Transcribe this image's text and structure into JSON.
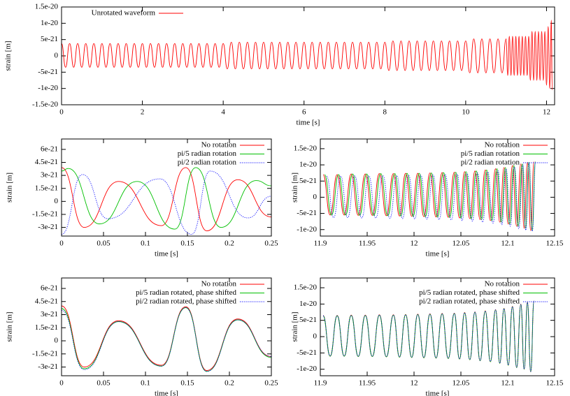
{
  "chart_data": [
    {
      "type": "line",
      "xlabel": "time [s]",
      "ylabel": "strain [m]",
      "xlim": [
        0,
        12.2
      ],
      "ylim": [
        -1.5e-20,
        1.5e-20
      ],
      "xticks": [
        0,
        2,
        4,
        6,
        8,
        10,
        12
      ],
      "yticks": [
        -1.5e-20,
        -1e-20,
        -5e-21,
        0,
        5e-21,
        1e-20,
        1.5e-20
      ],
      "legend": "upper left",
      "x": [
        0,
        0.1,
        0.2,
        0.3,
        0.4,
        0.5,
        0.6,
        0.7,
        0.8,
        0.9,
        1,
        1.1,
        1.2,
        1.3,
        1.4,
        1.5,
        1.6,
        1.7,
        1.8,
        1.9,
        2,
        2.1,
        2.2,
        2.3,
        2.4,
        2.5,
        2.6,
        2.7,
        2.8,
        2.9,
        3,
        3.1,
        3.2,
        3.3,
        3.4,
        3.5,
        3.6,
        3.7,
        3.8,
        3.9,
        4,
        4.1,
        4.2,
        4.3,
        4.4,
        4.5,
        4.6,
        4.7,
        4.8,
        4.9,
        5,
        5.1,
        5.2,
        5.3,
        5.4,
        5.5,
        5.6,
        5.7,
        5.8,
        5.9,
        6,
        6.1,
        6.2,
        6.3,
        6.4,
        6.5,
        6.6,
        6.7,
        6.8,
        6.9,
        7,
        7.1,
        7.2,
        7.3,
        7.4,
        7.5,
        7.6,
        7.7,
        7.8,
        7.9,
        8,
        8.1,
        8.2,
        8.3,
        8.4,
        8.5,
        8.6,
        8.7,
        8.8,
        8.9,
        9,
        9.1,
        9.2,
        9.3,
        9.4,
        9.5,
        9.6,
        9.7,
        9.8,
        9.9,
        10,
        10.1,
        10.2,
        10.3,
        10.4,
        10.5,
        10.6,
        10.7,
        10.8,
        10.9,
        11,
        11.04,
        11.08,
        11.12,
        11.16,
        11.2,
        11.24,
        11.28,
        11.32,
        11.36,
        11.4,
        11.44,
        11.48,
        11.52,
        11.56,
        11.6,
        11.64,
        11.68,
        11.72,
        11.76,
        11.8,
        11.84,
        11.88,
        11.92,
        11.96,
        12,
        12.04,
        12.08,
        12.12,
        12.14
      ],
      "series": [
        {
          "name": "Unrotated waveform",
          "color": "#ff0000",
          "values": [
            3.8e-21,
            -3.5e-21,
            3.8e-21,
            -3.5e-21,
            3.8e-21,
            -3.5e-21,
            3.8e-21,
            -3.5e-21,
            3.8e-21,
            -3.5e-21,
            3.8e-21,
            -3.5e-21,
            3.8e-21,
            -3.5e-21,
            3.8e-21,
            -3.5e-21,
            3.8e-21,
            -3.5e-21,
            3.8e-21,
            -3.5e-21,
            3.8e-21,
            -3.5e-21,
            3.8e-21,
            -3.5e-21,
            3.8e-21,
            -3.5e-21,
            3.8e-21,
            -3.5e-21,
            3.8e-21,
            -3.5e-21,
            3.8e-21,
            -3.5e-21,
            3.8e-21,
            -3.5e-21,
            3.8e-21,
            -3.5e-21,
            3.8e-21,
            -3.5e-21,
            3.8e-21,
            -3.5e-21,
            3.8e-21,
            -4e-21,
            4.2e-21,
            -4e-21,
            4.2e-21,
            -4e-21,
            4.2e-21,
            -4e-21,
            4.2e-21,
            -4e-21,
            4.2e-21,
            -4e-21,
            4.2e-21,
            -4e-21,
            4.2e-21,
            -4e-21,
            4.2e-21,
            -4e-21,
            4.2e-21,
            -4e-21,
            4.2e-21,
            -4e-21,
            4.2e-21,
            -4e-21,
            4.2e-21,
            -4e-21,
            4.2e-21,
            -4e-21,
            4.2e-21,
            -4e-21,
            4.2e-21,
            -4e-21,
            4.2e-21,
            -4e-21,
            4.2e-21,
            -4e-21,
            4.2e-21,
            -4e-21,
            4.2e-21,
            -4e-21,
            4.2e-21,
            -4.5e-21,
            4.6e-21,
            -4.5e-21,
            4.6e-21,
            -4.5e-21,
            4.6e-21,
            -4.5e-21,
            4.6e-21,
            -4.5e-21,
            4.6e-21,
            -4.5e-21,
            4.6e-21,
            -4.5e-21,
            4.6e-21,
            -4.5e-21,
            4.6e-21,
            -4.5e-21,
            4.6e-21,
            -4.5e-21,
            4.6e-21,
            -5.2e-21,
            5.2e-21,
            -5.2e-21,
            5.2e-21,
            -5.2e-21,
            5.2e-21,
            -5.2e-21,
            5.2e-21,
            -5.2e-21,
            5.2e-21,
            -6e-21,
            6e-21,
            -6e-21,
            6e-21,
            -6e-21,
            6e-21,
            -6e-21,
            6e-21,
            -6e-21,
            6e-21,
            -6e-21,
            6e-21,
            -6e-21,
            6e-21,
            -7.5e-21,
            7.5e-21,
            -7.5e-21,
            7.5e-21,
            -7.5e-21,
            7.5e-21,
            -7.5e-21,
            7.5e-21,
            -7.5e-21,
            7.5e-21,
            -9e-21,
            9e-21,
            -1e-20,
            1.1e-20,
            -1.05e-20
          ]
        }
      ]
    },
    {
      "type": "line",
      "xlabel": "time [s]",
      "ylabel": "strain [m]",
      "xlim": [
        0,
        0.25
      ],
      "ylim": [
        -4e-21,
        7.2e-21
      ],
      "xticks": [
        0,
        0.05,
        0.1,
        0.15,
        0.2,
        0.25
      ],
      "yticks": [
        -3e-21,
        -1.5e-21,
        0,
        1.5e-21,
        3e-21,
        4.5e-21,
        6e-21
      ],
      "legend": "upper right",
      "series": [
        {
          "name": "No rotation",
          "color": "#ff0000",
          "x": [
            0,
            0.027,
            0.068,
            0.119,
            0.148,
            0.173,
            0.21,
            0.25
          ],
          "values": [
            3.9e-21,
            -3e-21,
            2.3e-21,
            -2.8e-21,
            3.9e-21,
            -3.4e-21,
            2.5e-21,
            -1.8e-21
          ]
        },
        {
          "name": "pi/5 radian rotation",
          "color": "#00c000",
          "x": [
            0,
            0.008,
            0.045,
            0.09,
            0.135,
            0.16,
            0.19,
            0.232,
            0.25
          ],
          "values": [
            3.5e-21,
            3.8e-21,
            -2.6e-21,
            2.3e-21,
            -3.2e-21,
            3.9e-21,
            -3e-21,
            2.4e-21,
            1.8e-21
          ]
        },
        {
          "name": "pi/2 radian rotation",
          "color": "#0000ff",
          "linestyle": "dotted",
          "x": [
            0,
            0.025,
            0.055,
            0.117,
            0.155,
            0.177,
            0.222,
            0.25
          ],
          "values": [
            -3.8e-21,
            3.1e-21,
            -2e-21,
            2.6e-21,
            -3.8e-21,
            3.5e-21,
            -1.9e-21,
            6e-22
          ]
        }
      ]
    },
    {
      "type": "line",
      "xlabel": "time [s]",
      "ylabel": "strain [m]",
      "xlim": [
        11.9,
        12.15
      ],
      "ylim": [
        -1.2e-20,
        1.8e-20
      ],
      "xticks": [
        11.9,
        11.95,
        12,
        12.05,
        12.1,
        12.15
      ],
      "yticks": [
        -1e-20,
        -5e-21,
        0,
        5e-21,
        1e-20,
        1.5e-20
      ],
      "legend": "upper right",
      "series": [
        {
          "name": "No rotation",
          "color": "#ff0000",
          "x": [
            11.903,
            11.9105,
            11.918,
            11.9255,
            11.933,
            11.9405,
            11.948,
            11.9555,
            11.963,
            11.9705,
            11.978,
            11.9845,
            11.991,
            11.9975,
            12.004,
            12.0105,
            12.017,
            12.0235,
            12.03,
            12.0365,
            12.043,
            12.0485,
            12.054,
            12.0595,
            12.065,
            12.0705,
            12.076,
            12.0815,
            12.087,
            12.0915,
            12.096,
            12.1005,
            12.105,
            12.1095,
            12.114,
            12.1175,
            12.121,
            12.1245,
            12.128
          ],
          "values": [
            7e-21,
            -5.5e-21,
            7e-21,
            -5.5e-21,
            7.2e-21,
            -5.6e-21,
            7.2e-21,
            -5.6e-21,
            7.3e-21,
            -5.7e-21,
            7.3e-21,
            -5.8e-21,
            7.4e-21,
            -5.9e-21,
            7.4e-21,
            -6e-21,
            7.5e-21,
            -6.1e-21,
            7.6e-21,
            -6.2e-21,
            7.7e-21,
            -6.4e-21,
            7.9e-21,
            -6.6e-21,
            8.1e-21,
            -6.9e-21,
            8.4e-21,
            -7.2e-21,
            8.8e-21,
            -7.7e-21,
            9.2e-21,
            -8.3e-21,
            9.8e-21,
            -9e-21,
            1.03e-20,
            -9.6e-21,
            1.08e-20,
            -1.03e-20,
            1.1e-20
          ]
        },
        {
          "name": "pi/5 radian rotation",
          "color": "#00c000",
          "x": [
            11.9045,
            11.912,
            11.9195,
            11.927,
            11.9345,
            11.942,
            11.9495,
            11.957,
            11.9645,
            11.972,
            11.9795,
            11.986,
            11.9925,
            11.999,
            12.0055,
            12.012,
            12.0185,
            12.025,
            12.0315,
            12.038,
            12.0445,
            12.05,
            12.0555,
            12.061,
            12.0665,
            12.072,
            12.0775,
            12.083,
            12.0885,
            12.093,
            12.0975,
            12.102,
            12.1065,
            12.111,
            12.1155,
            12.119,
            12.1225,
            12.126,
            12.1295
          ],
          "values": [
            7e-21,
            -5.5e-21,
            7e-21,
            -5.5e-21,
            7.2e-21,
            -5.6e-21,
            7.2e-21,
            -5.6e-21,
            7.3e-21,
            -5.7e-21,
            7.3e-21,
            -5.8e-21,
            7.4e-21,
            -5.9e-21,
            7.4e-21,
            -6e-21,
            7.5e-21,
            -6.1e-21,
            7.6e-21,
            -6.2e-21,
            7.7e-21,
            -6.4e-21,
            7.9e-21,
            -6.6e-21,
            8.1e-21,
            -6.9e-21,
            8.4e-21,
            -7.2e-21,
            8.8e-21,
            -7.7e-21,
            9.2e-21,
            -8.3e-21,
            9.8e-21,
            -9e-21,
            1.03e-20,
            -9.6e-21,
            1.08e-20,
            -1.03e-20,
            1.1e-20
          ]
        },
        {
          "name": "pi/2 radian rotation",
          "color": "#0000ff",
          "linestyle": "dotted",
          "x": [
            11.9067,
            11.9142,
            11.9217,
            11.9292,
            11.9367,
            11.9442,
            11.9517,
            11.9592,
            11.9667,
            11.9742,
            11.9817,
            11.9877,
            11.9942,
            12.0007,
            12.0072,
            12.0137,
            12.0202,
            12.0267,
            12.0332,
            12.0397,
            12.0462,
            12.0512,
            12.0567,
            12.0622,
            12.0677,
            12.0732,
            12.0787,
            12.0842,
            12.0897,
            12.0937,
            12.0982,
            12.1027,
            12.1072,
            12.1117,
            12.1162,
            12.1192,
            12.1227,
            12.1262,
            12.1297
          ],
          "values": [
            6.5e-21,
            -6.3e-21,
            6.5e-21,
            -6.3e-21,
            6.6e-21,
            -6.4e-21,
            6.6e-21,
            -6.4e-21,
            6.7e-21,
            -6.5e-21,
            6.7e-21,
            -6.6e-21,
            6.8e-21,
            -6.7e-21,
            6.8e-21,
            -6.8e-21,
            6.9e-21,
            -6.9e-21,
            7e-21,
            -7e-21,
            7.1e-21,
            -7.2e-21,
            7.3e-21,
            -7.4e-21,
            7.5e-21,
            -7.7e-21,
            7.8e-21,
            -8e-21,
            8.2e-21,
            -8.5e-21,
            8.7e-21,
            -9e-21,
            9.3e-21,
            -9.7e-21,
            1e-20,
            -1.02e-20,
            1.05e-20,
            -1.05e-20,
            1.08e-20
          ]
        }
      ]
    },
    {
      "type": "line",
      "xlabel": "time [s]",
      "ylabel": "strain [m]",
      "xlim": [
        0,
        0.25
      ],
      "ylim": [
        -4e-21,
        7.2e-21
      ],
      "xticks": [
        0,
        0.05,
        0.1,
        0.15,
        0.2,
        0.25
      ],
      "yticks": [
        -3e-21,
        -1.5e-21,
        0,
        1.5e-21,
        3e-21,
        4.5e-21,
        6e-21
      ],
      "legend": "upper right",
      "x": [
        0,
        0.027,
        0.068,
        0.119,
        0.148,
        0.173,
        0.21,
        0.25
      ],
      "series": [
        {
          "name": "No rotation",
          "color": "#ff0000",
          "values": [
            4e-21,
            -3e-21,
            2.3e-21,
            -2.8e-21,
            3.9e-21,
            -3.4e-21,
            2.5e-21,
            -1.8e-21
          ]
        },
        {
          "name": "pi/5 radian rotated, phase shifted",
          "color": "#00c000",
          "values": [
            3.7e-21,
            -3.2e-21,
            2.2e-21,
            -2.9e-21,
            3.8e-21,
            -3.5e-21,
            2.4e-21,
            -1.9e-21
          ]
        },
        {
          "name": "pi/2 radian rotated, phase shifted",
          "color": "#0000ff",
          "linestyle": "dotted",
          "values": [
            3.5e-21,
            -3.3e-21,
            2.2e-21,
            -2.9e-21,
            3.8e-21,
            -3.5e-21,
            2.4e-21,
            -1.8e-21
          ]
        }
      ]
    },
    {
      "type": "line",
      "xlabel": "time [s]",
      "ylabel": "strain [m]",
      "xlim": [
        11.9,
        12.15
      ],
      "ylim": [
        -1.2e-20,
        1.8e-20
      ],
      "xticks": [
        11.9,
        11.95,
        12,
        12.05,
        12.1,
        12.15
      ],
      "yticks": [
        -1e-20,
        -5e-21,
        0,
        5e-21,
        1e-20,
        1.5e-20
      ],
      "legend": "upper right",
      "x": [
        11.903,
        11.9105,
        11.918,
        11.9255,
        11.933,
        11.9405,
        11.948,
        11.9555,
        11.963,
        11.9705,
        11.978,
        11.9845,
        11.991,
        11.9975,
        12.004,
        12.0105,
        12.017,
        12.0235,
        12.03,
        12.0365,
        12.043,
        12.0485,
        12.054,
        12.0595,
        12.065,
        12.0705,
        12.076,
        12.0815,
        12.087,
        12.0915,
        12.096,
        12.1005,
        12.105,
        12.1095,
        12.114,
        12.1175,
        12.121,
        12.1245,
        12.128
      ],
      "series": [
        {
          "name": "No rotation",
          "color": "#ff0000",
          "values": [
            6.5e-21,
            -6e-21,
            6.5e-21,
            -6e-21,
            6.6e-21,
            -6.1e-21,
            6.6e-21,
            -6.1e-21,
            6.7e-21,
            -6.2e-21,
            6.7e-21,
            -6.3e-21,
            6.8e-21,
            -6.4e-21,
            6.9e-21,
            -6.5e-21,
            7e-21,
            -6.6e-21,
            7.1e-21,
            -6.7e-21,
            7.2e-21,
            -6.9e-21,
            7.4e-21,
            -7.1e-21,
            7.6e-21,
            -7.4e-21,
            7.9e-21,
            -7.7e-21,
            8.3e-21,
            -8.2e-21,
            8.7e-21,
            -8.8e-21,
            9.3e-21,
            -9.5e-21,
            1e-20,
            -1e-20,
            1.06e-20,
            -1.08e-20,
            1.1e-20
          ]
        },
        {
          "name": "pi/5 radian rotated, phase shifted",
          "color": "#00c000",
          "values": [
            6.4e-21,
            -6e-21,
            6.4e-21,
            -6e-21,
            6.5e-21,
            -6.1e-21,
            6.5e-21,
            -6.1e-21,
            6.6e-21,
            -6.2e-21,
            6.6e-21,
            -6.3e-21,
            6.7e-21,
            -6.4e-21,
            6.8e-21,
            -6.5e-21,
            6.9e-21,
            -6.6e-21,
            7e-21,
            -6.7e-21,
            7.1e-21,
            -6.9e-21,
            7.3e-21,
            -7.1e-21,
            7.5e-21,
            -7.4e-21,
            7.8e-21,
            -7.7e-21,
            8.2e-21,
            -8.2e-21,
            8.6e-21,
            -8.8e-21,
            9.2e-21,
            -9.5e-21,
            9.9e-21,
            -1e-20,
            1.05e-20,
            -1.08e-20,
            1.09e-20
          ]
        },
        {
          "name": "pi/2 radian rotated, phase shifted",
          "color": "#0000ff",
          "linestyle": "dotted",
          "values": [
            6.4e-21,
            -5.9e-21,
            6.4e-21,
            -5.9e-21,
            6.5e-21,
            -6e-21,
            6.5e-21,
            -6e-21,
            6.6e-21,
            -6.1e-21,
            6.6e-21,
            -6.2e-21,
            6.7e-21,
            -6.3e-21,
            6.8e-21,
            -6.4e-21,
            6.9e-21,
            -6.5e-21,
            7e-21,
            -6.6e-21,
            7.1e-21,
            -6.8e-21,
            7.3e-21,
            -7e-21,
            7.5e-21,
            -7.3e-21,
            7.8e-21,
            -7.6e-21,
            8.2e-21,
            -8.1e-21,
            8.6e-21,
            -8.7e-21,
            9.2e-21,
            -9.4e-21,
            9.9e-21,
            -9.9e-21,
            1.05e-20,
            -1.07e-20,
            1.09e-20
          ]
        }
      ]
    }
  ]
}
